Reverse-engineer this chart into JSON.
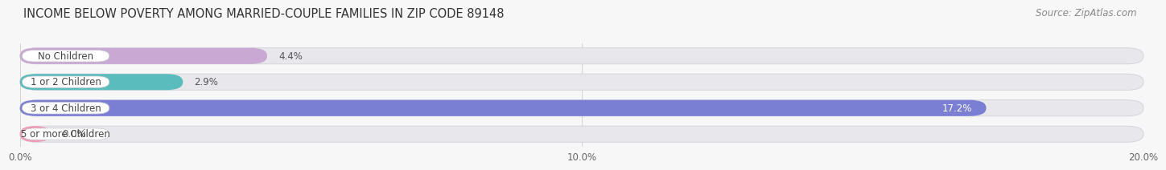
{
  "title": "INCOME BELOW POVERTY AMONG MARRIED-COUPLE FAMILIES IN ZIP CODE 89148",
  "source": "Source: ZipAtlas.com",
  "categories": [
    "No Children",
    "1 or 2 Children",
    "3 or 4 Children",
    "5 or more Children"
  ],
  "values": [
    4.4,
    2.9,
    17.2,
    0.0
  ],
  "bar_colors": [
    "#c9a8d4",
    "#5bbcbe",
    "#7b7fd4",
    "#f09ab5"
  ],
  "value_labels": [
    "4.4%",
    "2.9%",
    "17.2%",
    "0.0%"
  ],
  "value_label_white": [
    false,
    false,
    true,
    false
  ],
  "xlim": [
    0,
    20.0
  ],
  "xticks": [
    0.0,
    10.0,
    20.0
  ],
  "xticklabels": [
    "0.0%",
    "10.0%",
    "20.0%"
  ],
  "background_color": "#f7f7f7",
  "bar_bg_color": "#e8e8ec",
  "title_fontsize": 10.5,
  "source_fontsize": 8.5,
  "label_fontsize": 8.5,
  "value_fontsize": 8.5,
  "pill_left_circle_colors": [
    "#c9a8d4",
    "#5bbcbe",
    "#7b7fd4",
    "#f09ab5"
  ]
}
